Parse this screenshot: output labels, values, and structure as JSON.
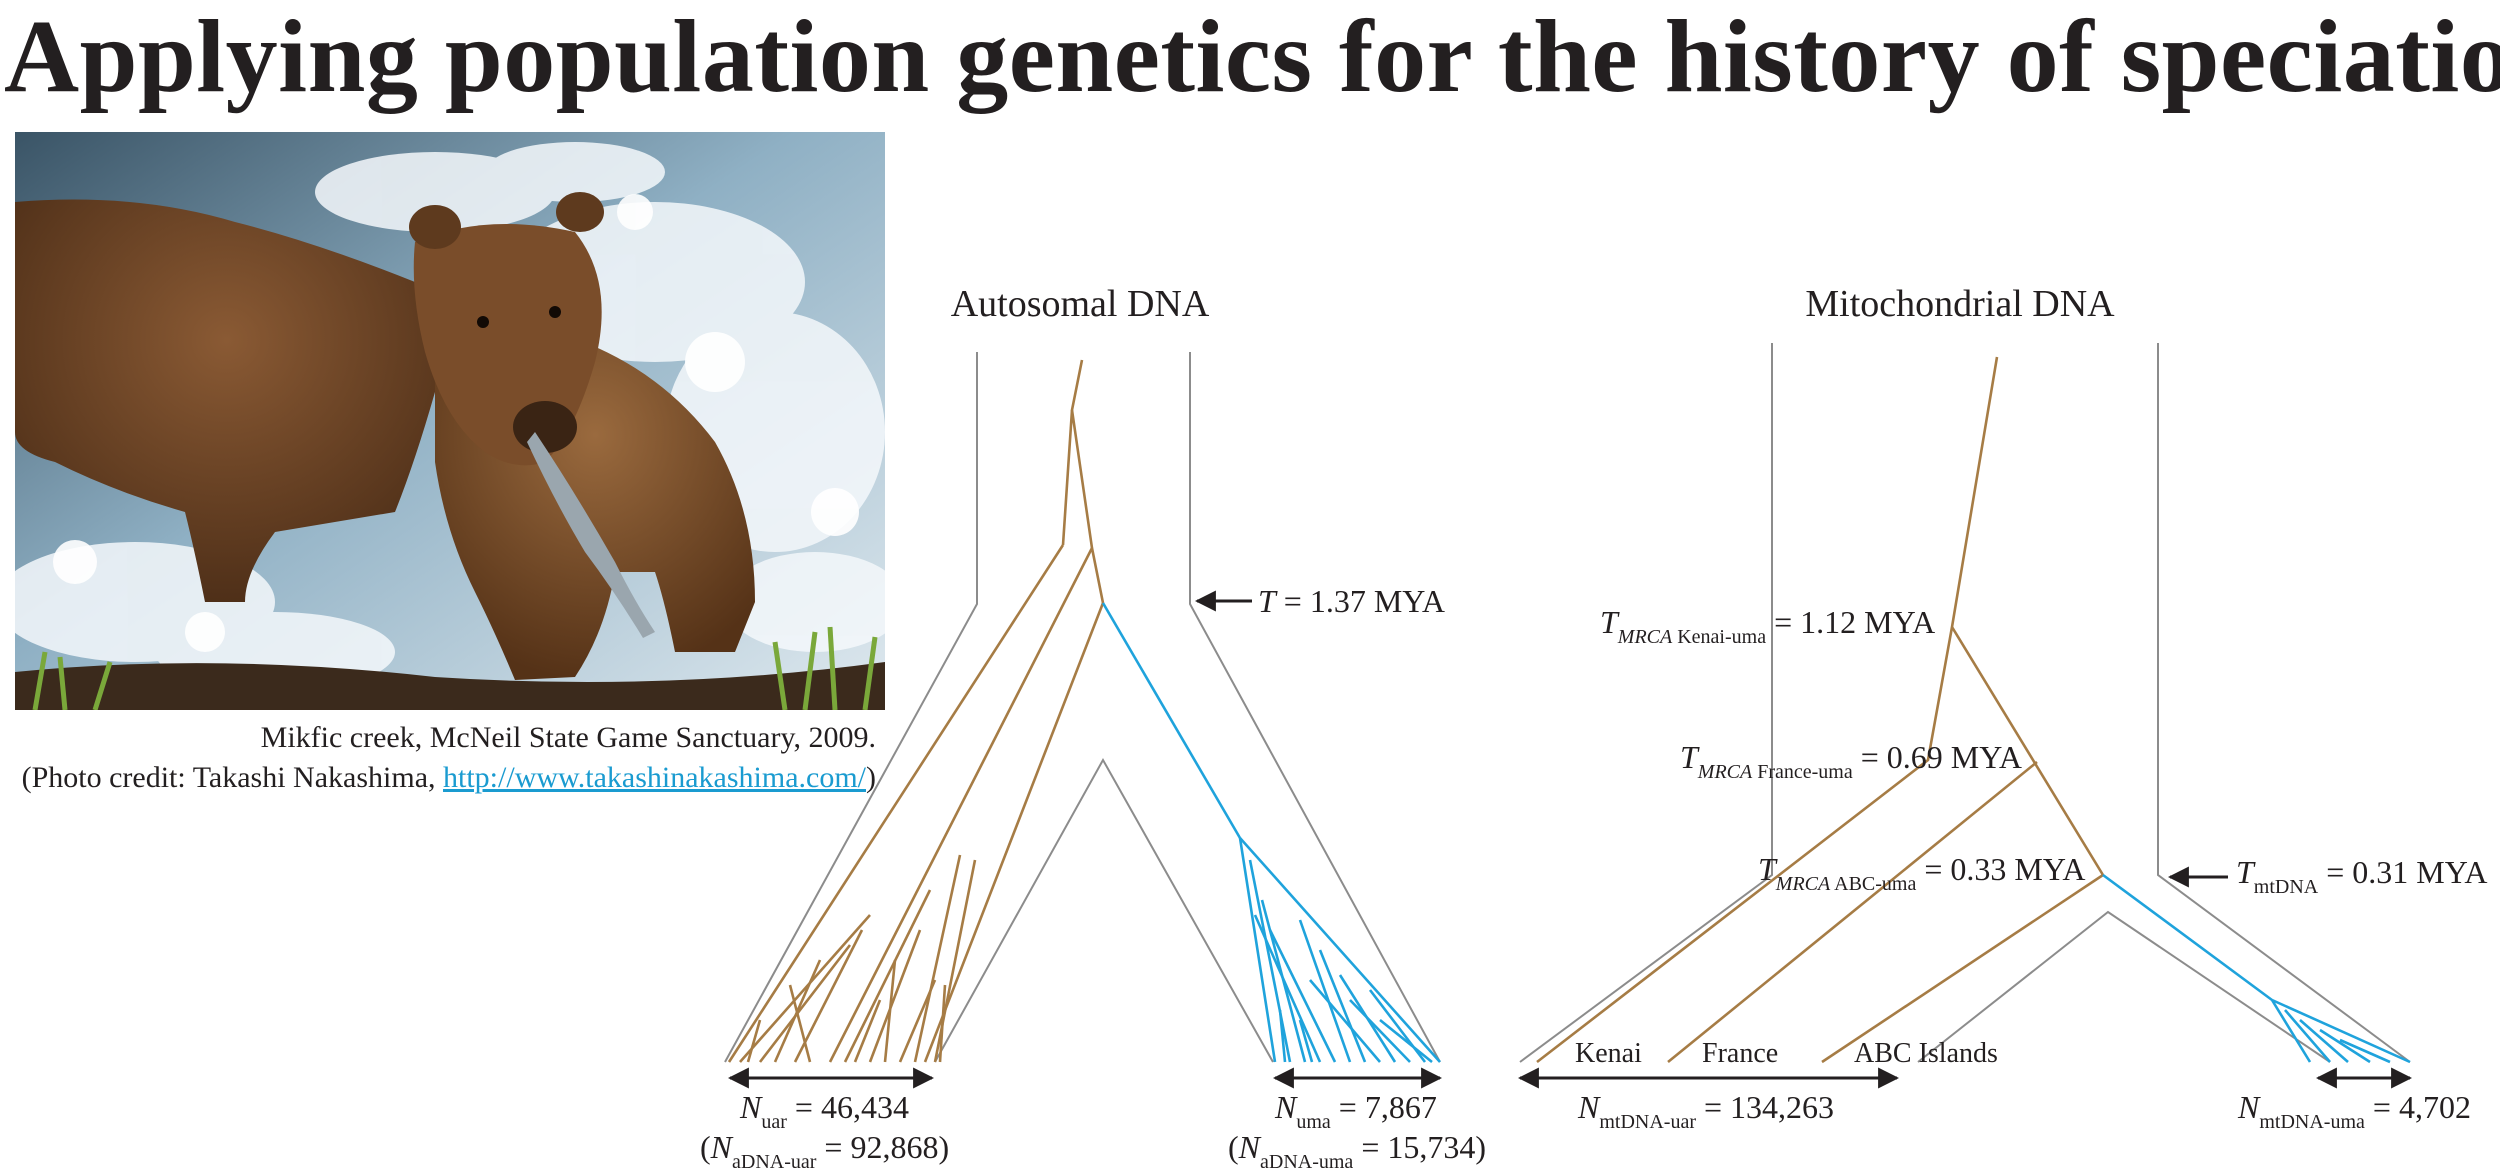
{
  "title": "Applying population genetics for the history of speciation",
  "photo": {
    "alt_caption_line1": "Mikfic creek, McNeil State Game Sanctuary, 2009.",
    "credit_prefix": "(Photo credit: Takashi Nakashima, ",
    "credit_link": "http://www.takashinakashima.com/",
    "credit_suffix": ")"
  },
  "autosomal": {
    "heading": "Autosomal DNA",
    "T_label": "T",
    "T_value": " = 1.37 MYA",
    "N_uar": {
      "sym": "N",
      "sub": "uar",
      "value": " = 46,434"
    },
    "N_aDNA_uar": {
      "open": "(",
      "sym": "N",
      "sub": "aDNA-uar",
      "value": " = 92,868)"
    },
    "N_uma": {
      "sym": "N",
      "sub": "uma",
      "value": " = 7,867"
    },
    "N_aDNA_uma": {
      "open": "(",
      "sym": "N",
      "sub": "aDNA-uma",
      "value": " = 15,734)"
    }
  },
  "mitochondrial": {
    "heading": "Mitochondrial DNA",
    "T_kenai": {
      "sym": "T",
      "sub_it": "MRCA",
      "sub": " Kenai-uma",
      "value": " = 1.12 MYA"
    },
    "T_france": {
      "sym": "T",
      "sub_it": "MRCA",
      "sub": " France-uma",
      "value": " = 0.69 MYA"
    },
    "T_abc": {
      "sym": "T",
      "sub_it": "MRCA",
      "sub": " ABC-uma",
      "value": " = 0.33 MYA"
    },
    "T_mt": {
      "sym": "T",
      "sub": "mtDNA",
      "value": " = 0.31 MYA"
    },
    "tips": [
      "Kenai",
      "France",
      "ABC Islands"
    ],
    "N_uar": {
      "sym": "N",
      "sub": "mtDNA-uar",
      "value": " = 134,263"
    },
    "N_uma": {
      "sym": "N",
      "sub": "mtDNA-uma",
      "value": " = 4,702"
    }
  },
  "colors": {
    "brown": "#a67c45",
    "blue": "#1fa3dc",
    "gray": "#8c8c8c",
    "text": "#231f20"
  }
}
